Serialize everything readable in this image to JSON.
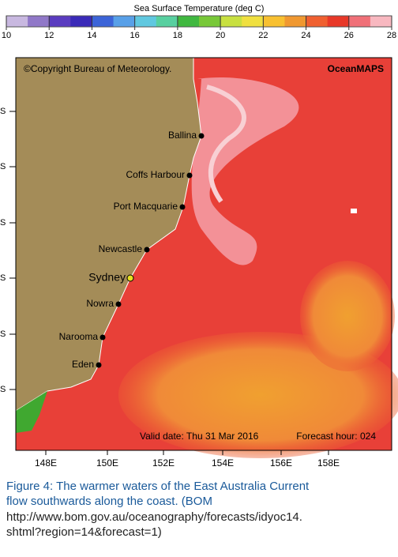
{
  "colorbar": {
    "title": "Sea Surface Temperature (deg C)",
    "range": [
      10,
      28
    ],
    "ticks": [
      10,
      12,
      14,
      16,
      18,
      20,
      22,
      24,
      26,
      28
    ],
    "colors": [
      "#c8b8e0",
      "#9078c8",
      "#5a3cc0",
      "#3a2ab8",
      "#3c64d8",
      "#58a0e8",
      "#60c8e0",
      "#58d0a0",
      "#40b840",
      "#78c838",
      "#c8e040",
      "#f0e040",
      "#f8c030",
      "#f09830",
      "#f06030",
      "#e83828",
      "#f07078",
      "#f8b8c0"
    ]
  },
  "map": {
    "copyright": "©Copyright Bureau of Meteorology.",
    "brand": "OceanMAPS",
    "cities": [
      "Ballina",
      "Coffs Harbour",
      "Port Macquarie",
      "Newcastle",
      "Sydney",
      "Nowra",
      "Narooma",
      "Eden"
    ],
    "valid_date": "Valid date: Thu 31 Mar 2016",
    "forecast": "Forecast hour: 024",
    "lat_labels": [
      "S",
      "S",
      "S",
      "S",
      "S",
      "S"
    ],
    "lon_labels": [
      "148E",
      "150E",
      "152E",
      "154E",
      "156E",
      "158E"
    ]
  },
  "caption": [
    "Figure 4:  The warmer waters of the East Australia Current",
    "flow southwards along the coast. (BOM",
    "http://www.bom.gov.au/oceanography/forecasts/idyoc14.",
    "shtml?region=14&forecast=1)"
  ]
}
